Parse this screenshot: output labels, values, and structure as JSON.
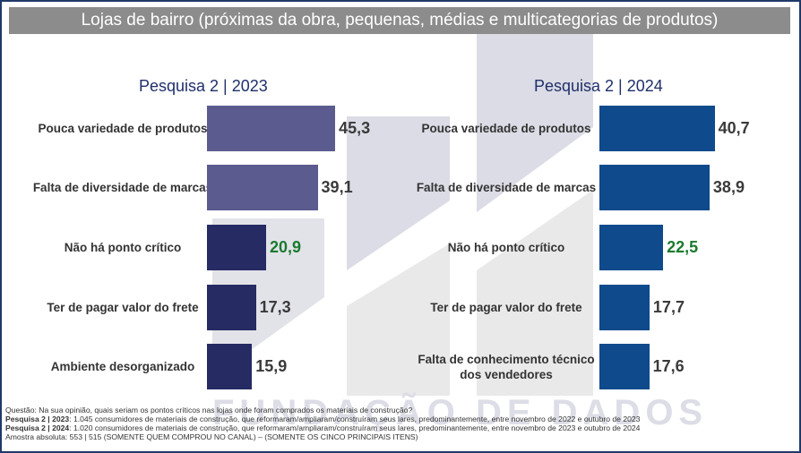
{
  "title": "Lojas de bairro (próximas da obra, pequenas, médias e multicategorias de produtos)",
  "watermark_text": "FUNDAÇÃO DE DADOS",
  "colors": {
    "bar_2023": "#5b5b8f",
    "bar_2023_highlight": "#262b63",
    "bar_2024": "#0f4a8c",
    "highlight_value": "#1a7a2e"
  },
  "chart_data": [
    {
      "type": "bar",
      "orientation": "horizontal",
      "title": "Pesquisa 2 | 2023",
      "categories": [
        "Pouca variedade de produtos",
        "Falta de diversidade de marcas",
        "Não há ponto crítico",
        "Ter de pagar valor do frete",
        "Ambiente desorganizado"
      ],
      "values": [
        45.3,
        39.1,
        20.9,
        17.3,
        15.9
      ],
      "value_labels": [
        "45,3",
        "39,1",
        "20,9",
        "17,3",
        "15,9"
      ],
      "highlight": [
        false,
        false,
        true,
        true,
        true
      ],
      "xlim": [
        0,
        50
      ],
      "grid": false
    },
    {
      "type": "bar",
      "orientation": "horizontal",
      "title": "Pesquisa 2 | 2024",
      "categories": [
        "Pouca variedade de produtos",
        "Falta de diversidade de marcas",
        "Não há ponto crítico",
        "Ter de pagar valor do frete",
        "Falta de conhecimento técnico dos vendedores"
      ],
      "values": [
        40.7,
        38.9,
        22.5,
        17.7,
        17.6
      ],
      "value_labels": [
        "40,7",
        "38,9",
        "22,5",
        "17,7",
        "17,6"
      ],
      "highlight": [
        false,
        false,
        false,
        false,
        false
      ],
      "xlim": [
        0,
        50
      ],
      "grid": false
    }
  ],
  "footnote": {
    "question": "Questão: Na sua opinião, quais seriam os pontos críticos nas lojas onde foram comprados os materiais de construção?",
    "line_2023_label": "Pesquisa 2 | 2023",
    "line_2023_text": ": 1.045 consumidores de materiais de construção, que reformaram/ampliaram/construíram seus lares, predominantemente, entre novembro de 2022 e outubro de 2023",
    "line_2024_label": "Pesquisa 2 | 2024",
    "line_2024_text": ": 1.020 consumidores de materiais de construção, que reformaram/ampliaram/construíram seus lares, predominantemente, entre novembro de 2023 e outubro de 2024",
    "sample": "Amostra absoluta: 553 | 515  (SOMENTE QUEM COMPROU NO CANAL) – (SOMENTE OS CINCO PRINCIPAIS ITENS)"
  }
}
